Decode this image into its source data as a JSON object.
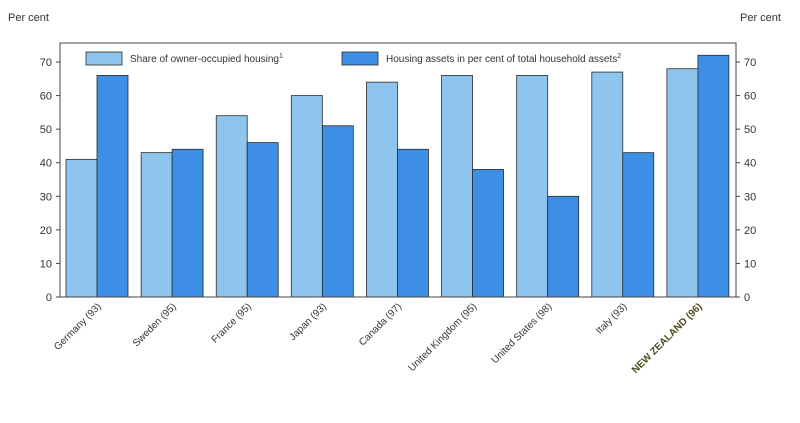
{
  "axis": {
    "left_label": "Per cent",
    "right_label": "Per cent"
  },
  "chart_data": {
    "type": "bar",
    "categories": [
      "Germany (93)",
      "Sweden (95)",
      "France (95)",
      "Japan (93)",
      "Canada (97)",
      "United Kingdom (95)",
      "United States (98)",
      "Italy (93)",
      "NEW ZEALAND (96)"
    ],
    "highlight_category": "NEW ZEALAND (96)",
    "series": [
      {
        "name": "Share of owner-occupied housing",
        "superscript": "1",
        "color": "#8ec5ef",
        "values": [
          41,
          43,
          54,
          60,
          64,
          66,
          66,
          67,
          68
        ]
      },
      {
        "name": "Housing assets in per cent of total household assets",
        "superscript": "2",
        "color": "#3d8fe6",
        "values": [
          66,
          44,
          46,
          51,
          44,
          38,
          30,
          43,
          72
        ]
      }
    ],
    "ylim": [
      0,
      70
    ],
    "yticks": [
      0,
      10,
      20,
      30,
      40,
      50,
      60,
      70
    ],
    "grid": false,
    "legend_position": "top"
  }
}
